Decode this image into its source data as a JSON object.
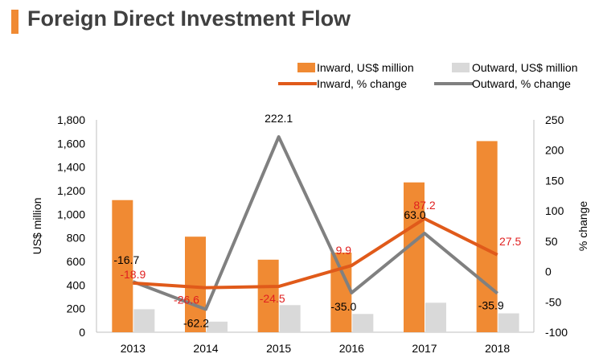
{
  "header": {
    "title": "Foreign Direct Investment Flow"
  },
  "chart_data": {
    "type": "bar",
    "categories": [
      "2013",
      "2014",
      "2015",
      "2016",
      "2017",
      "2018"
    ],
    "ylabel": "US$ million",
    "y2label": "% change",
    "ylim": [
      0,
      1800
    ],
    "y2lim": [
      -100,
      250
    ],
    "yticks": [
      "0",
      "200",
      "400",
      "600",
      "800",
      "1,000",
      "1,200",
      "1,400",
      "1,600",
      "1,800"
    ],
    "y2ticks": [
      "-100",
      "-50",
      "0",
      "50",
      "100",
      "150",
      "200",
      "250"
    ],
    "legend_position": "top-right",
    "colors": {
      "inward_bar": "#f08a33",
      "outward_bar": "#d9d9d9",
      "inward_line": "#e05a1a",
      "outward_line": "#808080",
      "inward_label": "#e02020",
      "outward_label": "#000000"
    },
    "series": [
      {
        "name": "Inward, US$ million",
        "kind": "bar",
        "axis": "left",
        "values": [
          1120,
          810,
          615,
          675,
          1270,
          1620
        ]
      },
      {
        "name": "Outward, US$ million",
        "kind": "bar",
        "axis": "left",
        "values": [
          195,
          90,
          230,
          155,
          250,
          160
        ]
      },
      {
        "name": "Inward, % change",
        "kind": "line",
        "axis": "right",
        "values": [
          -18.9,
          -26.6,
          -24.5,
          9.9,
          87.2,
          27.5
        ],
        "labels": [
          "-18.9",
          "-26.6",
          "-24.5",
          "9.9",
          "87.2",
          "27.5"
        ]
      },
      {
        "name": "Outward, % change",
        "kind": "line",
        "axis": "right",
        "values": [
          -16.7,
          -62.2,
          222.1,
          -35.0,
          63.0,
          -35.9
        ],
        "labels": [
          "-16.7",
          "-62.2",
          "222.1",
          "-35.0",
          "63.0",
          "-35.9"
        ]
      }
    ]
  }
}
